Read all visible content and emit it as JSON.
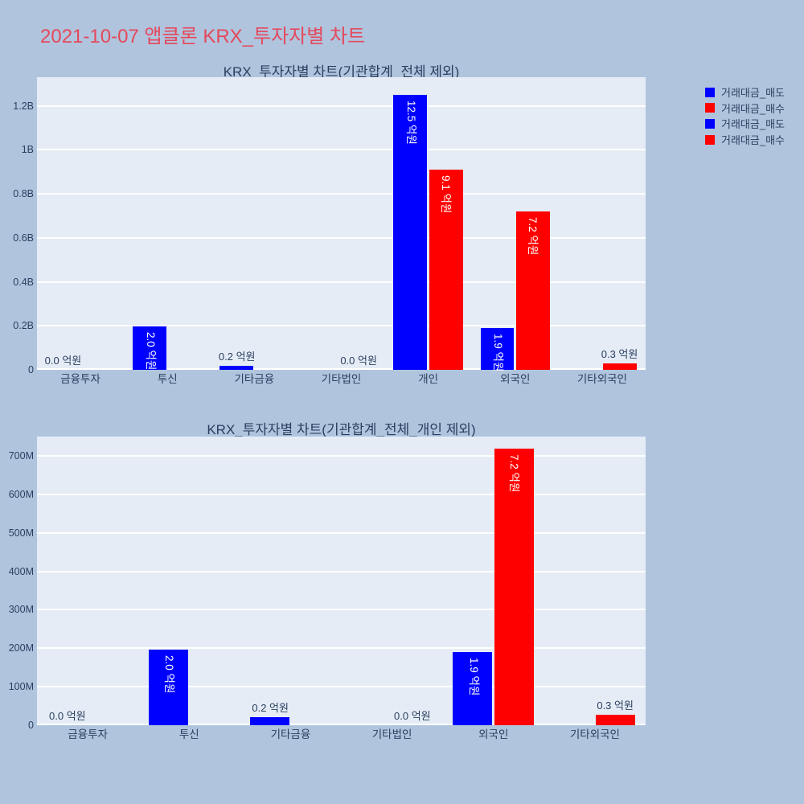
{
  "page_title": "2021-10-07 앱클론 KRX_투자자별 차트",
  "colors": {
    "page_bg": "#b0c4de",
    "plot_bg": "#e5ecf6",
    "title_text": "#e4495b",
    "text": "#2a3f5f",
    "grid": "#ffffff",
    "sell": "#0000ff",
    "buy": "#ff0000",
    "inside_label": "#ffffff"
  },
  "legend": {
    "position": "right",
    "items": [
      {
        "label": "거래대금_매도",
        "color": "#0000ff"
      },
      {
        "label": "거래대금_매수",
        "color": "#ff0000"
      },
      {
        "label": "거래대금_매도",
        "color": "#0000ff"
      },
      {
        "label": "거래대금_매수",
        "color": "#ff0000"
      }
    ]
  },
  "chart_data": [
    {
      "type": "bar",
      "title": "KRX_투자자별 차트(기관합계_전체 제외)",
      "unit": "억원",
      "grid": true,
      "categories": [
        "금융투자",
        "투신",
        "기타금융",
        "기타법인",
        "개인",
        "외국인",
        "기타외국인"
      ],
      "series": [
        {
          "name": "거래대금_매도",
          "color": "#0000ff",
          "values": [
            0,
            196000000,
            20000000,
            0,
            1250000000,
            190000000,
            0
          ]
        },
        {
          "name": "거래대금_매수",
          "color": "#ff0000",
          "values": [
            0,
            0,
            0,
            0,
            910000000,
            718000000,
            28000000
          ]
        }
      ],
      "bar_labels": [
        {
          "cat": 0,
          "series": 0,
          "text": "0.0 억원",
          "placement": "outside"
        },
        {
          "cat": 1,
          "series": 0,
          "text": "2.0 억원",
          "placement": "inside"
        },
        {
          "cat": 2,
          "series": 0,
          "text": "0.2 억원",
          "placement": "outside"
        },
        {
          "cat": 3,
          "series": 1,
          "text": "0.0 억원",
          "placement": "outside"
        },
        {
          "cat": 4,
          "series": 0,
          "text": "12.5 억원",
          "placement": "inside"
        },
        {
          "cat": 4,
          "series": 1,
          "text": "9.1 억원",
          "placement": "inside"
        },
        {
          "cat": 5,
          "series": 0,
          "text": "1.9 억원",
          "placement": "inside"
        },
        {
          "cat": 5,
          "series": 1,
          "text": "7.2 억원",
          "placement": "inside"
        },
        {
          "cat": 6,
          "series": 1,
          "text": "0.3 억원",
          "placement": "outside"
        }
      ],
      "yticks": [
        {
          "value": 0,
          "label": "0"
        },
        {
          "value": 200000000,
          "label": "0.2B"
        },
        {
          "value": 400000000,
          "label": "0.4B"
        },
        {
          "value": 600000000,
          "label": "0.6B"
        },
        {
          "value": 800000000,
          "label": "0.8B"
        },
        {
          "value": 1000000000,
          "label": "1B"
        },
        {
          "value": 1200000000,
          "label": "1.2B"
        }
      ],
      "ylim": [
        0,
        1330000000
      ]
    },
    {
      "type": "bar",
      "title": "KRX_투자자별 차트(기관합계_전체_개인 제외)",
      "unit": "억원",
      "grid": true,
      "categories": [
        "금융투자",
        "투신",
        "기타금융",
        "기타법인",
        "외국인",
        "기타외국인"
      ],
      "series": [
        {
          "name": "거래대금_매도",
          "color": "#0000ff",
          "values": [
            0,
            196000000,
            20000000,
            0,
            190000000,
            0
          ]
        },
        {
          "name": "거래대금_매수",
          "color": "#ff0000",
          "values": [
            0,
            0,
            0,
            0,
            718000000,
            28000000
          ]
        }
      ],
      "bar_labels": [
        {
          "cat": 0,
          "series": 0,
          "text": "0.0 억원",
          "placement": "outside"
        },
        {
          "cat": 1,
          "series": 0,
          "text": "2.0 억원",
          "placement": "inside"
        },
        {
          "cat": 2,
          "series": 0,
          "text": "0.2 억원",
          "placement": "outside"
        },
        {
          "cat": 3,
          "series": 1,
          "text": "0.0 억원",
          "placement": "outside"
        },
        {
          "cat": 4,
          "series": 0,
          "text": "1.9 억원",
          "placement": "inside"
        },
        {
          "cat": 4,
          "series": 1,
          "text": "7.2 억원",
          "placement": "inside"
        },
        {
          "cat": 5,
          "series": 1,
          "text": "0.3 억원",
          "placement": "outside"
        }
      ],
      "yticks": [
        {
          "value": 0,
          "label": "0"
        },
        {
          "value": 100000000,
          "label": "100M"
        },
        {
          "value": 200000000,
          "label": "200M"
        },
        {
          "value": 300000000,
          "label": "300M"
        },
        {
          "value": 400000000,
          "label": "400M"
        },
        {
          "value": 500000000,
          "label": "500M"
        },
        {
          "value": 600000000,
          "label": "600M"
        },
        {
          "value": 700000000,
          "label": "700M"
        }
      ],
      "ylim": [
        0,
        750000000
      ]
    }
  ]
}
